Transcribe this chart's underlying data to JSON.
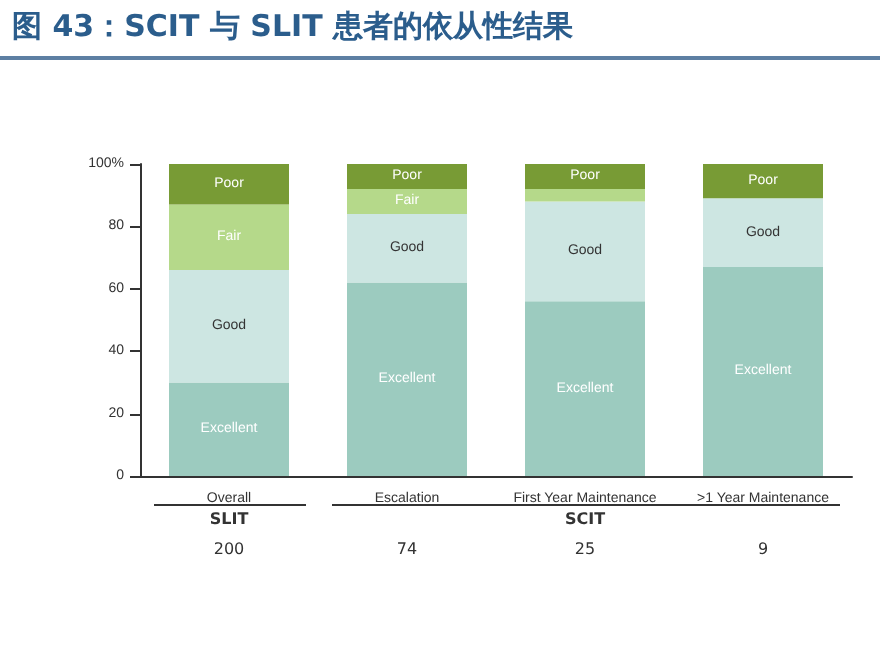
{
  "chart_data": {
    "type": "bar",
    "title": "图 43：SCIT 与 SLIT 患者的依从性结果",
    "categories": [
      "Overall",
      "Escalation",
      "First Year Maintenance",
      ">1 Year Maintenance"
    ],
    "stacked": true,
    "series": [
      {
        "name": "Excellent",
        "color": "#9ccbbf",
        "values": [
          30,
          62,
          56,
          67
        ]
      },
      {
        "name": "Good",
        "color": "#cde6e2",
        "values": [
          36,
          22,
          32,
          22
        ]
      },
      {
        "name": "Fair",
        "color": "#b5d98a",
        "values": [
          21,
          8,
          4,
          0
        ]
      },
      {
        "name": "Poor",
        "color": "#789b35",
        "values": [
          13,
          8,
          8,
          11
        ]
      }
    ],
    "ylim": [
      0,
      100
    ],
    "yticks": [
      0,
      20,
      40,
      60,
      {
        "value": 100,
        "label": "100%"
      },
      80
    ],
    "grid": false,
    "legend": false,
    "annotations": [
      "SLIT",
      "SCIT",
      "200",
      "74",
      "25",
      "9"
    ]
  }
}
